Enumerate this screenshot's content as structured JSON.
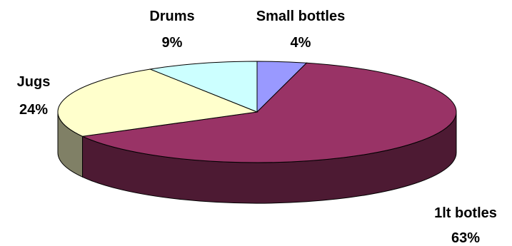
{
  "chart_data": {
    "type": "pie",
    "style": "3d",
    "title": "",
    "slices": [
      {
        "label": "Small bottles",
        "value": 4,
        "display": "4%",
        "color": "#9999ff"
      },
      {
        "label": "1lt botles",
        "value": 63,
        "display": "63%",
        "color": "#993366"
      },
      {
        "label": "Jugs",
        "value": 24,
        "display": "24%",
        "color": "#ffffcc"
      },
      {
        "label": "Drums",
        "value": 9,
        "display": "9%",
        "color": "#ccffff"
      }
    ]
  }
}
